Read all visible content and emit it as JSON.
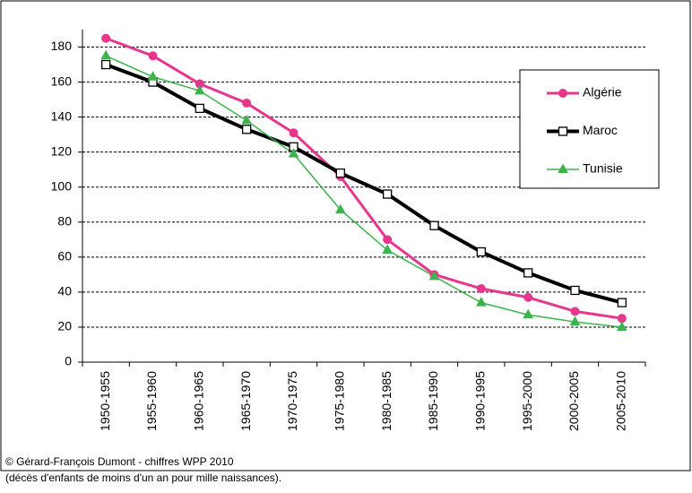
{
  "chart_data": {
    "type": "line",
    "categories": [
      "1950-1955",
      "1955-1960",
      "1960-1965",
      "1965-1970",
      "1970-1975",
      "1975-1980",
      "1980-1985",
      "1985-1990",
      "1990-1995",
      "1995-2000",
      "2000-2005",
      "2005-2010"
    ],
    "series": [
      {
        "name": "Algérie",
        "color": "#e8368f",
        "marker": "circle",
        "line_width": 3,
        "values": [
          185,
          175,
          159,
          148,
          131,
          106,
          70,
          50,
          42,
          37,
          29,
          25
        ]
      },
      {
        "name": "Maroc",
        "color": "#000000",
        "marker": "square",
        "line_width": 4,
        "values": [
          170,
          160,
          145,
          133,
          123,
          108,
          96,
          78,
          63,
          51,
          41,
          34
        ]
      },
      {
        "name": "Tunisie",
        "color": "#3cb44b",
        "marker": "triangle",
        "line_width": 1.5,
        "values": [
          175,
          163,
          155,
          138,
          119,
          87,
          64,
          49,
          34,
          27,
          23,
          20
        ]
      }
    ],
    "ylim": [
      0,
      190
    ],
    "yticks": [
      0,
      20,
      40,
      60,
      80,
      100,
      120,
      140,
      160,
      180
    ],
    "grid": true,
    "legend": "right",
    "annotations": [
      "© Gérard-François Dumont - chiffres  WPP 2010",
      "(décès d'enfants de moins d'un an  pour mille naissances)."
    ]
  }
}
